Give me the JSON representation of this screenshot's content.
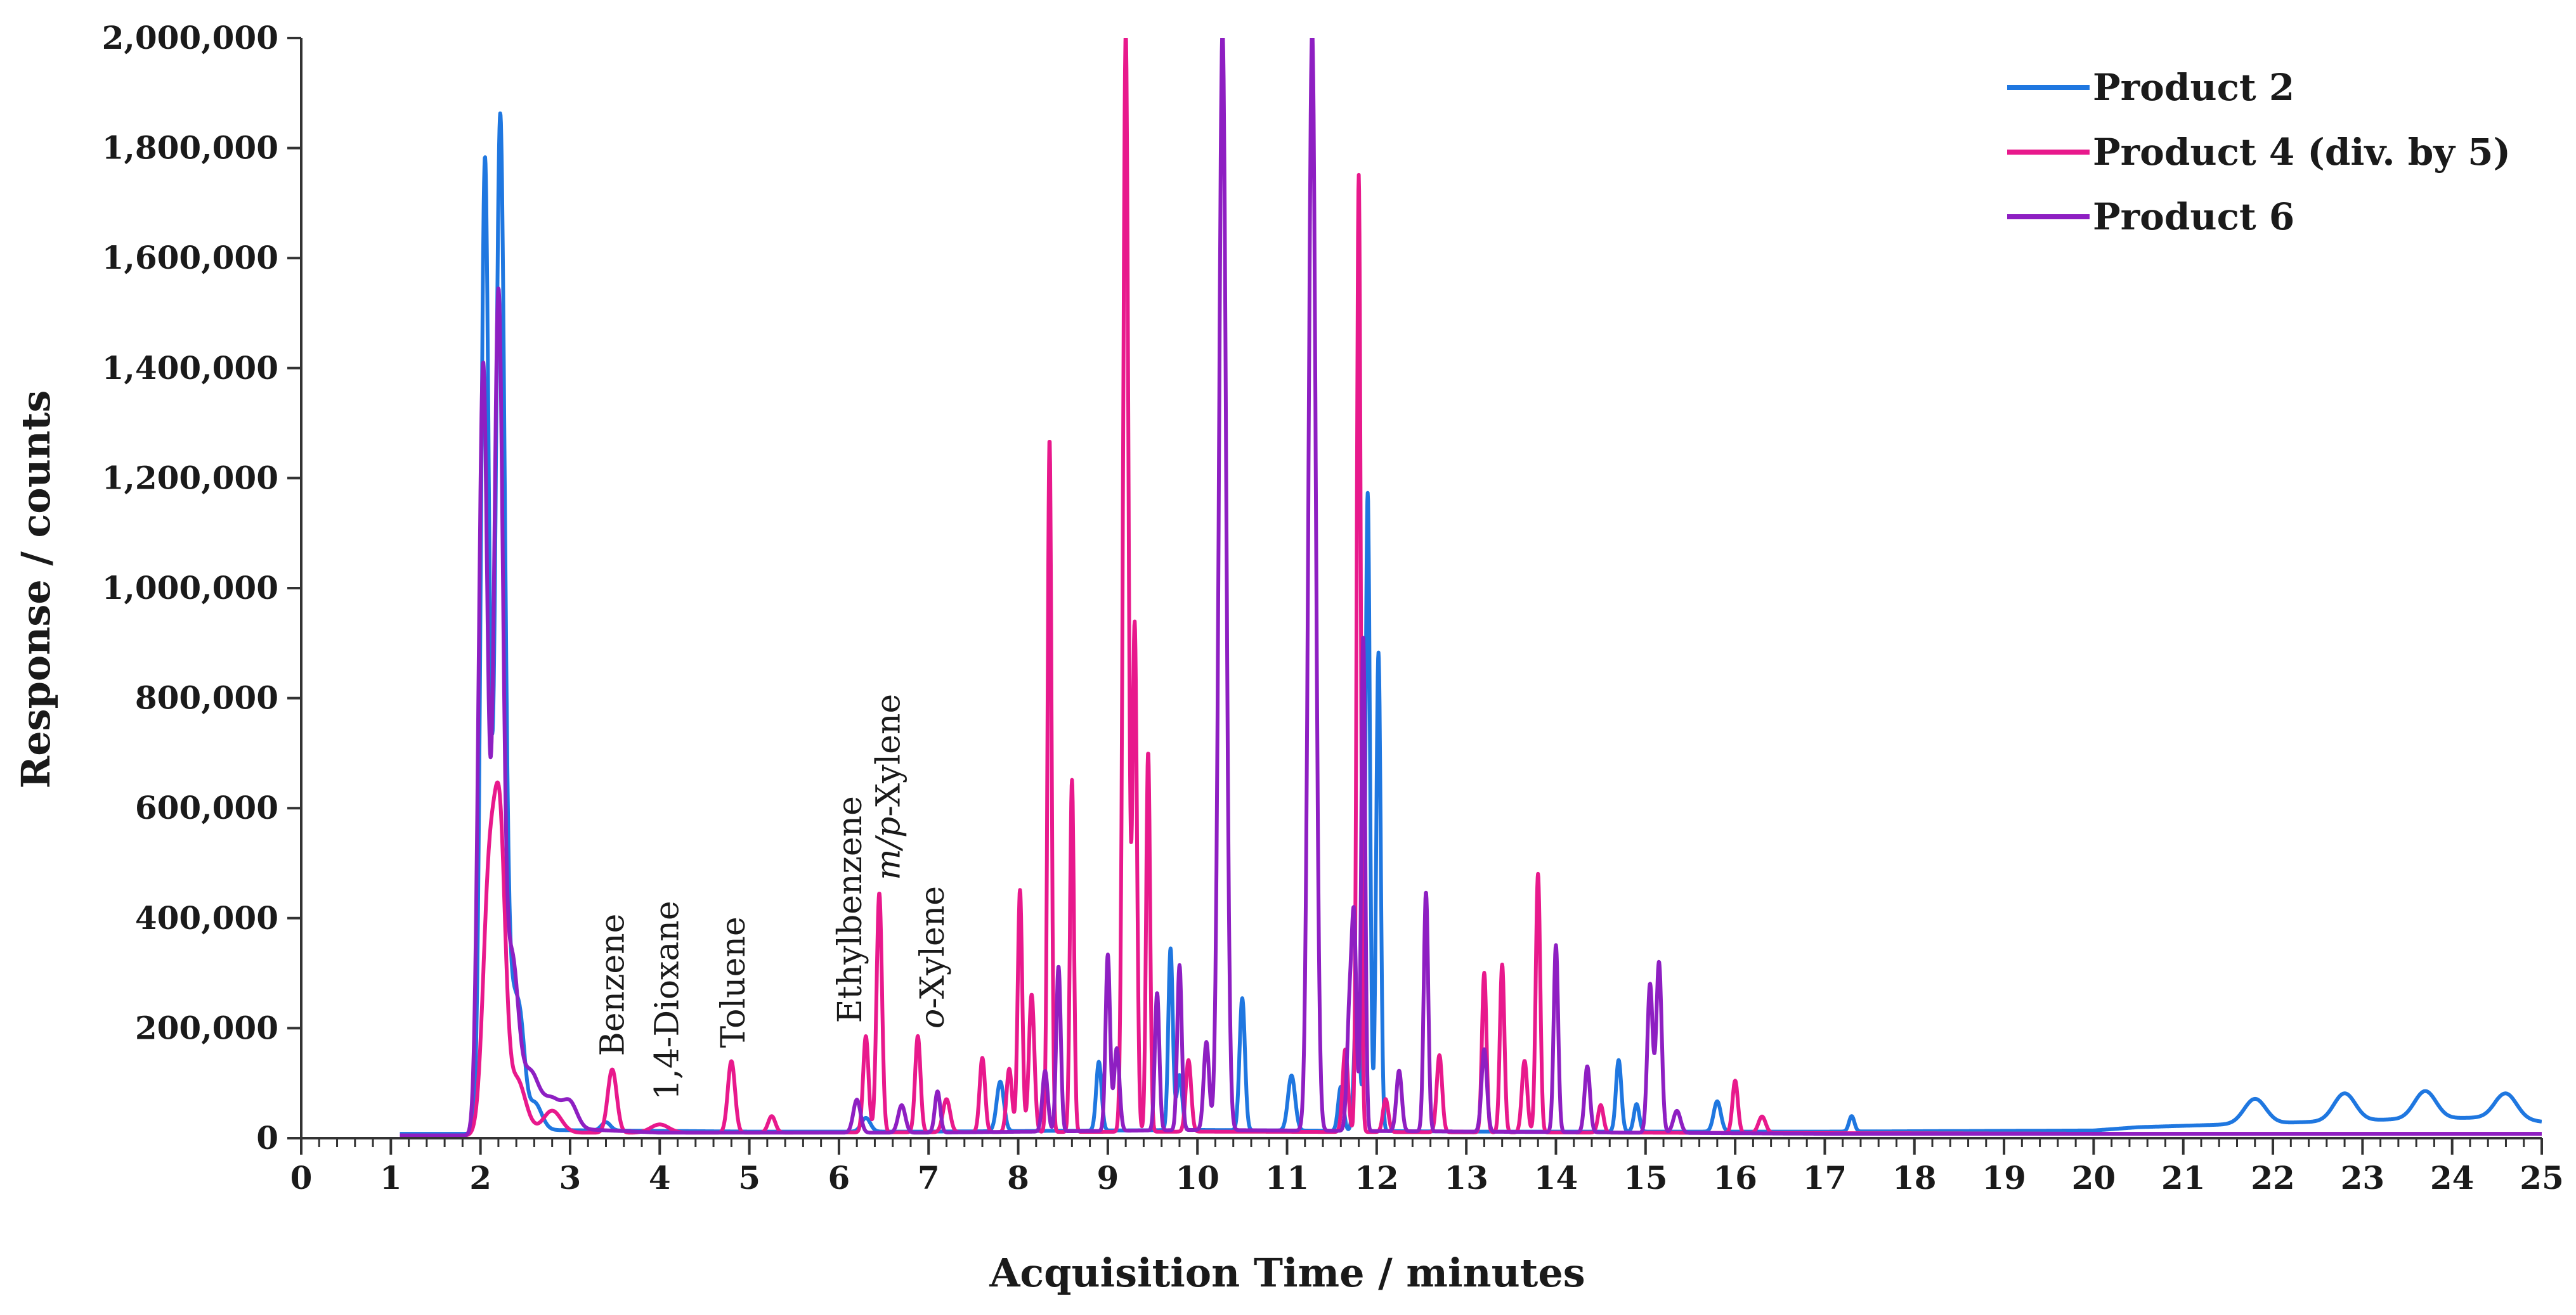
{
  "chart_data": {
    "type": "line",
    "title": "",
    "xlabel": "Acquisition Time / minutes",
    "ylabel": "Response / counts",
    "xlim": [
      0,
      25
    ],
    "ylim": [
      0,
      2000000
    ],
    "x_ticks": [
      0,
      1,
      2,
      3,
      4,
      5,
      6,
      7,
      8,
      9,
      10,
      11,
      12,
      13,
      14,
      15,
      16,
      17,
      18,
      19,
      20,
      21,
      22,
      23,
      24,
      25
    ],
    "x_tick_labels": [
      "0",
      "1",
      "2",
      "3",
      "4",
      "5",
      "6",
      "7",
      "8",
      "9",
      "10",
      "11",
      "12",
      "13",
      "14",
      "15",
      "16",
      "17",
      "18",
      "19",
      "20",
      "21",
      "22",
      "23",
      "24",
      "25"
    ],
    "y_ticks": [
      0,
      200000,
      400000,
      600000,
      800000,
      1000000,
      1200000,
      1400000,
      1600000,
      1800000,
      2000000
    ],
    "y_tick_labels": [
      "0",
      "200,000",
      "400,000",
      "600,000",
      "800,000",
      "1,000,000",
      "1,200,000",
      "1,400,000",
      "1,600,000",
      "1,800,000",
      "2,000,000"
    ],
    "grid": false,
    "legend_position": "top-right",
    "series": [
      {
        "name": "Product 2",
        "color": "#1f77e0",
        "baseline": [
          [
            1.1,
            8000
          ],
          [
            2.0,
            8000
          ],
          [
            2.6,
            15000
          ],
          [
            5,
            12000
          ],
          [
            7,
            12000
          ],
          [
            10,
            15000
          ],
          [
            13,
            12000
          ],
          [
            17,
            12000
          ],
          [
            20,
            14000
          ],
          [
            20.5,
            20000
          ],
          [
            21.5,
            25000
          ],
          [
            22.5,
            30000
          ],
          [
            23.5,
            35000
          ],
          [
            24.5,
            38000
          ],
          [
            25,
            30000
          ]
        ],
        "peaks": [
          [
            2.05,
            1770000,
            0.045
          ],
          [
            2.22,
            1830000,
            0.05
          ],
          [
            2.35,
            220000,
            0.06
          ],
          [
            2.45,
            150000,
            0.05
          ],
          [
            2.6,
            50000,
            0.08
          ],
          [
            3.4,
            15000,
            0.05
          ],
          [
            6.3,
            25000,
            0.05
          ],
          [
            7.8,
            90000,
            0.04
          ],
          [
            8.9,
            125000,
            0.03
          ],
          [
            9.7,
            330000,
            0.025
          ],
          [
            9.8,
            100000,
            0.03
          ],
          [
            10.5,
            240000,
            0.03
          ],
          [
            11.05,
            100000,
            0.04
          ],
          [
            11.6,
            80000,
            0.03
          ],
          [
            11.78,
            250000,
            0.03
          ],
          [
            11.9,
            1160000,
            0.025
          ],
          [
            12.02,
            870000,
            0.025
          ],
          [
            14.7,
            130000,
            0.03
          ],
          [
            14.9,
            50000,
            0.03
          ],
          [
            15.8,
            55000,
            0.04
          ],
          [
            17.3,
            28000,
            0.03
          ],
          [
            21.8,
            45000,
            0.12
          ],
          [
            22.8,
            50000,
            0.12
          ],
          [
            23.7,
            50000,
            0.12
          ],
          [
            24.6,
            45000,
            0.12
          ]
        ]
      },
      {
        "name": "Product 4 (div. by 5)",
        "color": "#e8198c",
        "baseline": [
          [
            1.1,
            5000
          ],
          [
            2.0,
            5000
          ],
          [
            2.6,
            10000
          ],
          [
            5,
            10000
          ],
          [
            10,
            12000
          ],
          [
            15,
            10000
          ],
          [
            20,
            8000
          ],
          [
            25,
            8000
          ]
        ],
        "peaks": [
          [
            2.1,
            470000,
            0.07
          ],
          [
            2.22,
            480000,
            0.06
          ],
          [
            2.4,
            100000,
            0.1
          ],
          [
            2.8,
            40000,
            0.1
          ],
          [
            3.47,
            115000,
            0.05
          ],
          [
            4.0,
            15000,
            0.1
          ],
          [
            4.8,
            130000,
            0.04
          ],
          [
            5.25,
            30000,
            0.04
          ],
          [
            6.3,
            175000,
            0.03
          ],
          [
            6.45,
            435000,
            0.03
          ],
          [
            6.88,
            175000,
            0.03
          ],
          [
            7.2,
            60000,
            0.04
          ],
          [
            7.6,
            135000,
            0.03
          ],
          [
            7.9,
            115000,
            0.03
          ],
          [
            8.02,
            440000,
            0.025
          ],
          [
            8.15,
            250000,
            0.03
          ],
          [
            8.35,
            1260000,
            0.022
          ],
          [
            8.6,
            640000,
            0.022
          ],
          [
            9.2,
            2000000,
            0.03
          ],
          [
            9.3,
            920000,
            0.025
          ],
          [
            9.45,
            690000,
            0.022
          ],
          [
            9.9,
            130000,
            0.03
          ],
          [
            11.8,
            1740000,
            0.022
          ],
          [
            11.65,
            150000,
            0.03
          ],
          [
            12.1,
            60000,
            0.03
          ],
          [
            12.7,
            140000,
            0.03
          ],
          [
            13.2,
            290000,
            0.025
          ],
          [
            13.4,
            305000,
            0.025
          ],
          [
            13.65,
            130000,
            0.03
          ],
          [
            13.8,
            470000,
            0.025
          ],
          [
            14.5,
            50000,
            0.03
          ],
          [
            16.0,
            95000,
            0.03
          ],
          [
            16.3,
            30000,
            0.04
          ]
        ]
      },
      {
        "name": "Product 6",
        "color": "#8e1fc2",
        "baseline": [
          [
            1.1,
            5000
          ],
          [
            2.0,
            5000
          ],
          [
            2.6,
            20000
          ],
          [
            4,
            10000
          ],
          [
            7,
            10000
          ],
          [
            10,
            15000
          ],
          [
            13,
            12000
          ],
          [
            17,
            8000
          ],
          [
            25,
            8000
          ]
        ],
        "peaks": [
          [
            2.03,
            1400000,
            0.05
          ],
          [
            2.2,
            1500000,
            0.05
          ],
          [
            2.35,
            300000,
            0.07
          ],
          [
            2.55,
            100000,
            0.1
          ],
          [
            2.8,
            50000,
            0.1
          ],
          [
            3.0,
            45000,
            0.08
          ],
          [
            6.2,
            60000,
            0.04
          ],
          [
            6.7,
            50000,
            0.04
          ],
          [
            7.1,
            75000,
            0.03
          ],
          [
            8.3,
            110000,
            0.03
          ],
          [
            8.45,
            300000,
            0.025
          ],
          [
            9.0,
            320000,
            0.025
          ],
          [
            9.1,
            150000,
            0.03
          ],
          [
            9.55,
            250000,
            0.025
          ],
          [
            9.8,
            300000,
            0.025
          ],
          [
            10.1,
            160000,
            0.03
          ],
          [
            10.28,
            2000000,
            0.04
          ],
          [
            11.28,
            2000000,
            0.04
          ],
          [
            11.7,
            225000,
            0.03
          ],
          [
            11.75,
            340000,
            0.025
          ],
          [
            11.85,
            900000,
            0.022
          ],
          [
            12.25,
            110000,
            0.03
          ],
          [
            12.55,
            435000,
            0.025
          ],
          [
            13.2,
            150000,
            0.03
          ],
          [
            14.0,
            340000,
            0.025
          ],
          [
            14.35,
            120000,
            0.03
          ],
          [
            15.05,
            270000,
            0.03
          ],
          [
            15.15,
            310000,
            0.03
          ],
          [
            15.35,
            40000,
            0.04
          ]
        ]
      }
    ],
    "annotations": [
      {
        "text": "Benzene",
        "x": 3.47,
        "y": 140000,
        "rotation": -90
      },
      {
        "text": "1,4-Dioxane",
        "x": 4.08,
        "y": 60000,
        "rotation": -90
      },
      {
        "text": "Toluene",
        "x": 4.82,
        "y": 155000,
        "rotation": -90
      },
      {
        "text": "Ethylbenzene",
        "x": 6.12,
        "y": 200000,
        "rotation": -90
      },
      {
        "text": "m/p-Xylene",
        "x": 6.55,
        "y": 460000,
        "rotation": -90
      },
      {
        "text": "o-Xylene",
        "x": 7.04,
        "y": 190000,
        "rotation": -90
      }
    ]
  }
}
